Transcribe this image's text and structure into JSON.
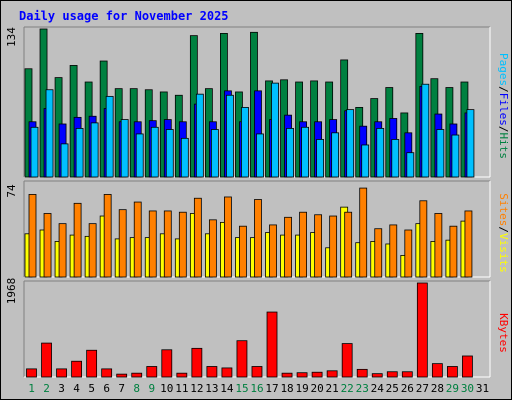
{
  "title": "Daily usage for November 2025",
  "colors": {
    "hits": "#008040",
    "files": "#0000ff",
    "pages": "#00c0ff",
    "visits": "#ffff00",
    "sites": "#ff8000",
    "kbytes": "#ff0000",
    "weekday_label": "#000000",
    "weekend_label": "#008040",
    "background": "#c0c0c0"
  },
  "chart_data": [
    {
      "type": "bar",
      "title": "Daily usage for November 2025",
      "categories": [
        "1",
        "2",
        "3",
        "4",
        "5",
        "6",
        "7",
        "8",
        "9",
        "10",
        "11",
        "12",
        "13",
        "14",
        "15",
        "16",
        "17",
        "18",
        "19",
        "20",
        "21",
        "22",
        "23",
        "24",
        "25",
        "26",
        "27",
        "28",
        "29",
        "30",
        "31"
      ],
      "weekend_days": [
        "1",
        "2",
        "8",
        "9",
        "15",
        "16",
        "22",
        "23",
        "29",
        "30"
      ],
      "y_max_label": "134",
      "ylim": [
        0,
        134
      ],
      "side_labels": [
        {
          "text": "Pages",
          "color": "#00c0ff"
        },
        {
          "text": "Files",
          "color": "#0000ff"
        },
        {
          "text": "Hits",
          "color": "#008040"
        }
      ],
      "series": [
        {
          "name": "Hits",
          "color": "#008040",
          "values": [
            98,
            134,
            90,
            101,
            86,
            105,
            80,
            80,
            79,
            77,
            74,
            128,
            80,
            130,
            77,
            131,
            87,
            88,
            86,
            87,
            86,
            106,
            63,
            71,
            81,
            58,
            130,
            89,
            81,
            86,
            0
          ]
        },
        {
          "name": "Files",
          "color": "#0000ff",
          "values": [
            50,
            62,
            48,
            54,
            55,
            62,
            50,
            50,
            51,
            52,
            50,
            66,
            50,
            78,
            50,
            78,
            52,
            56,
            50,
            50,
            52,
            60,
            46,
            50,
            53,
            40,
            82,
            57,
            48,
            58,
            0
          ]
        },
        {
          "name": "Pages",
          "color": "#00c0ff",
          "values": [
            45,
            79,
            30,
            44,
            49,
            73,
            52,
            39,
            45,
            43,
            35,
            75,
            43,
            74,
            63,
            39,
            85,
            44,
            45,
            34,
            40,
            61,
            29,
            44,
            34,
            22,
            84,
            43,
            38,
            61,
            0
          ]
        }
      ]
    },
    {
      "type": "bar",
      "categories": [
        "1",
        "2",
        "3",
        "4",
        "5",
        "6",
        "7",
        "8",
        "9",
        "10",
        "11",
        "12",
        "13",
        "14",
        "15",
        "16",
        "17",
        "18",
        "19",
        "20",
        "21",
        "22",
        "23",
        "24",
        "25",
        "26",
        "27",
        "28",
        "29",
        "30",
        "31"
      ],
      "y_max_label": "74",
      "ylim": [
        0,
        74
      ],
      "side_labels": [
        {
          "text": "Sites",
          "color": "#ff8000"
        },
        {
          "text": "Visits",
          "color": "#ffff00"
        }
      ],
      "series": [
        {
          "name": "Visits",
          "color": "#ffff00",
          "values": [
            34,
            37,
            28,
            33,
            32,
            48,
            30,
            31,
            31,
            34,
            30,
            50,
            34,
            43,
            31,
            31,
            35,
            33,
            33,
            35,
            23,
            55,
            27,
            28,
            26,
            17,
            42,
            28,
            29,
            44,
            0
          ]
        },
        {
          "name": "Sites",
          "color": "#ff8000",
          "values": [
            65,
            50,
            42,
            58,
            42,
            65,
            53,
            59,
            52,
            52,
            51,
            62,
            45,
            63,
            40,
            61,
            41,
            47,
            51,
            49,
            48,
            51,
            70,
            38,
            41,
            37,
            60,
            50,
            40,
            52,
            0
          ]
        }
      ]
    },
    {
      "type": "bar",
      "categories": [
        "1",
        "2",
        "3",
        "4",
        "5",
        "6",
        "7",
        "8",
        "9",
        "10",
        "11",
        "12",
        "13",
        "14",
        "15",
        "16",
        "17",
        "18",
        "19",
        "20",
        "21",
        "22",
        "23",
        "24",
        "25",
        "26",
        "27",
        "28",
        "29",
        "30",
        "31"
      ],
      "y_max_label": "1968",
      "ylim": [
        0,
        1968
      ],
      "side_labels": [
        {
          "text": "KBytes",
          "color": "#ff0000"
        }
      ],
      "series": [
        {
          "name": "KBytes",
          "color": "#ff0000",
          "values": [
            170,
            710,
            170,
            330,
            560,
            170,
            60,
            80,
            220,
            570,
            80,
            600,
            220,
            190,
            760,
            220,
            1360,
            80,
            90,
            100,
            130,
            700,
            160,
            70,
            110,
            110,
            1968,
            280,
            220,
            440,
            0
          ]
        }
      ]
    }
  ]
}
